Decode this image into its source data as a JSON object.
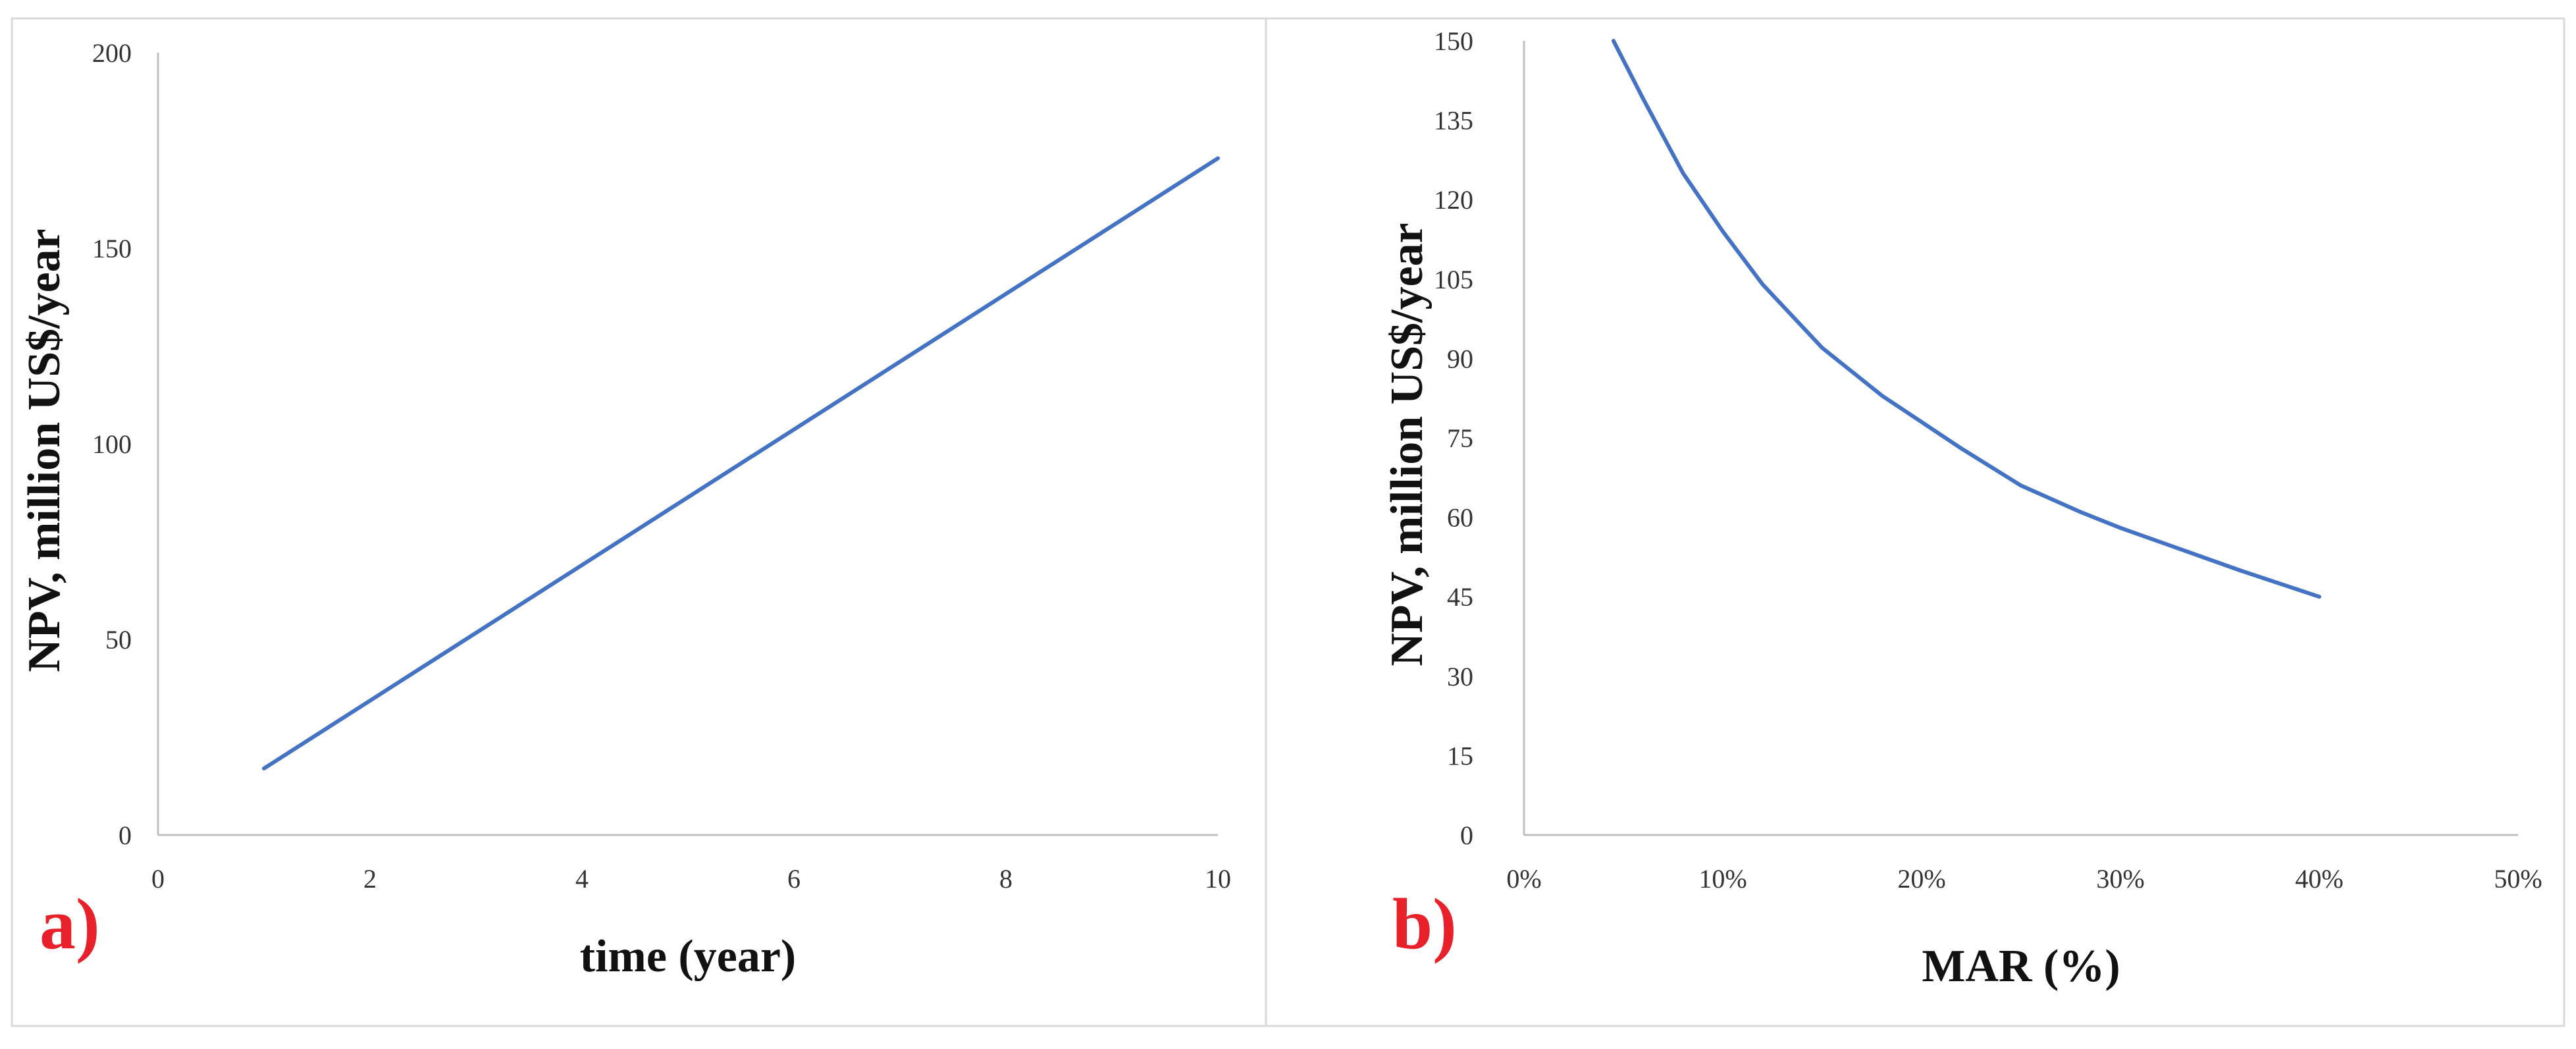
{
  "colors": {
    "line": "#4472C4",
    "panel_label": "#E8202A",
    "axis": "#BFBFBF",
    "frame": "#D9D9D9"
  },
  "chart_data": [
    {
      "type": "line",
      "panel_label": "a)",
      "title": "",
      "xlabel": "time (year)",
      "ylabel": "NPV, million US$/year",
      "xlim": [
        0,
        10
      ],
      "ylim": [
        0,
        200
      ],
      "xticks": [
        0,
        2,
        4,
        6,
        8,
        10
      ],
      "yticks": [
        0,
        50,
        100,
        150,
        200
      ],
      "grid": false,
      "series": [
        {
          "x": [
            1,
            10
          ],
          "y": [
            17,
            173
          ]
        }
      ]
    },
    {
      "type": "line",
      "panel_label": "b)",
      "title": "",
      "xlabel": "MAR (%)",
      "ylabel": "NPV, million US$/year",
      "xlim": [
        0,
        50
      ],
      "ylim": [
        0,
        150
      ],
      "xticks": [
        0,
        10,
        20,
        30,
        40,
        50
      ],
      "xtick_labels": [
        "0%",
        "10%",
        "20%",
        "30%",
        "40%",
        "50%"
      ],
      "yticks": [
        0,
        15,
        30,
        45,
        60,
        75,
        90,
        105,
        120,
        135,
        150
      ],
      "grid": false,
      "series": [
        {
          "x": [
            4.5,
            6,
            8,
            10,
            12,
            15,
            18,
            20,
            22,
            25,
            28,
            30,
            33,
            36,
            40
          ],
          "y": [
            150,
            139,
            125,
            114,
            104,
            92,
            83,
            78,
            73,
            66,
            61,
            58,
            54,
            50,
            45
          ]
        }
      ]
    }
  ]
}
